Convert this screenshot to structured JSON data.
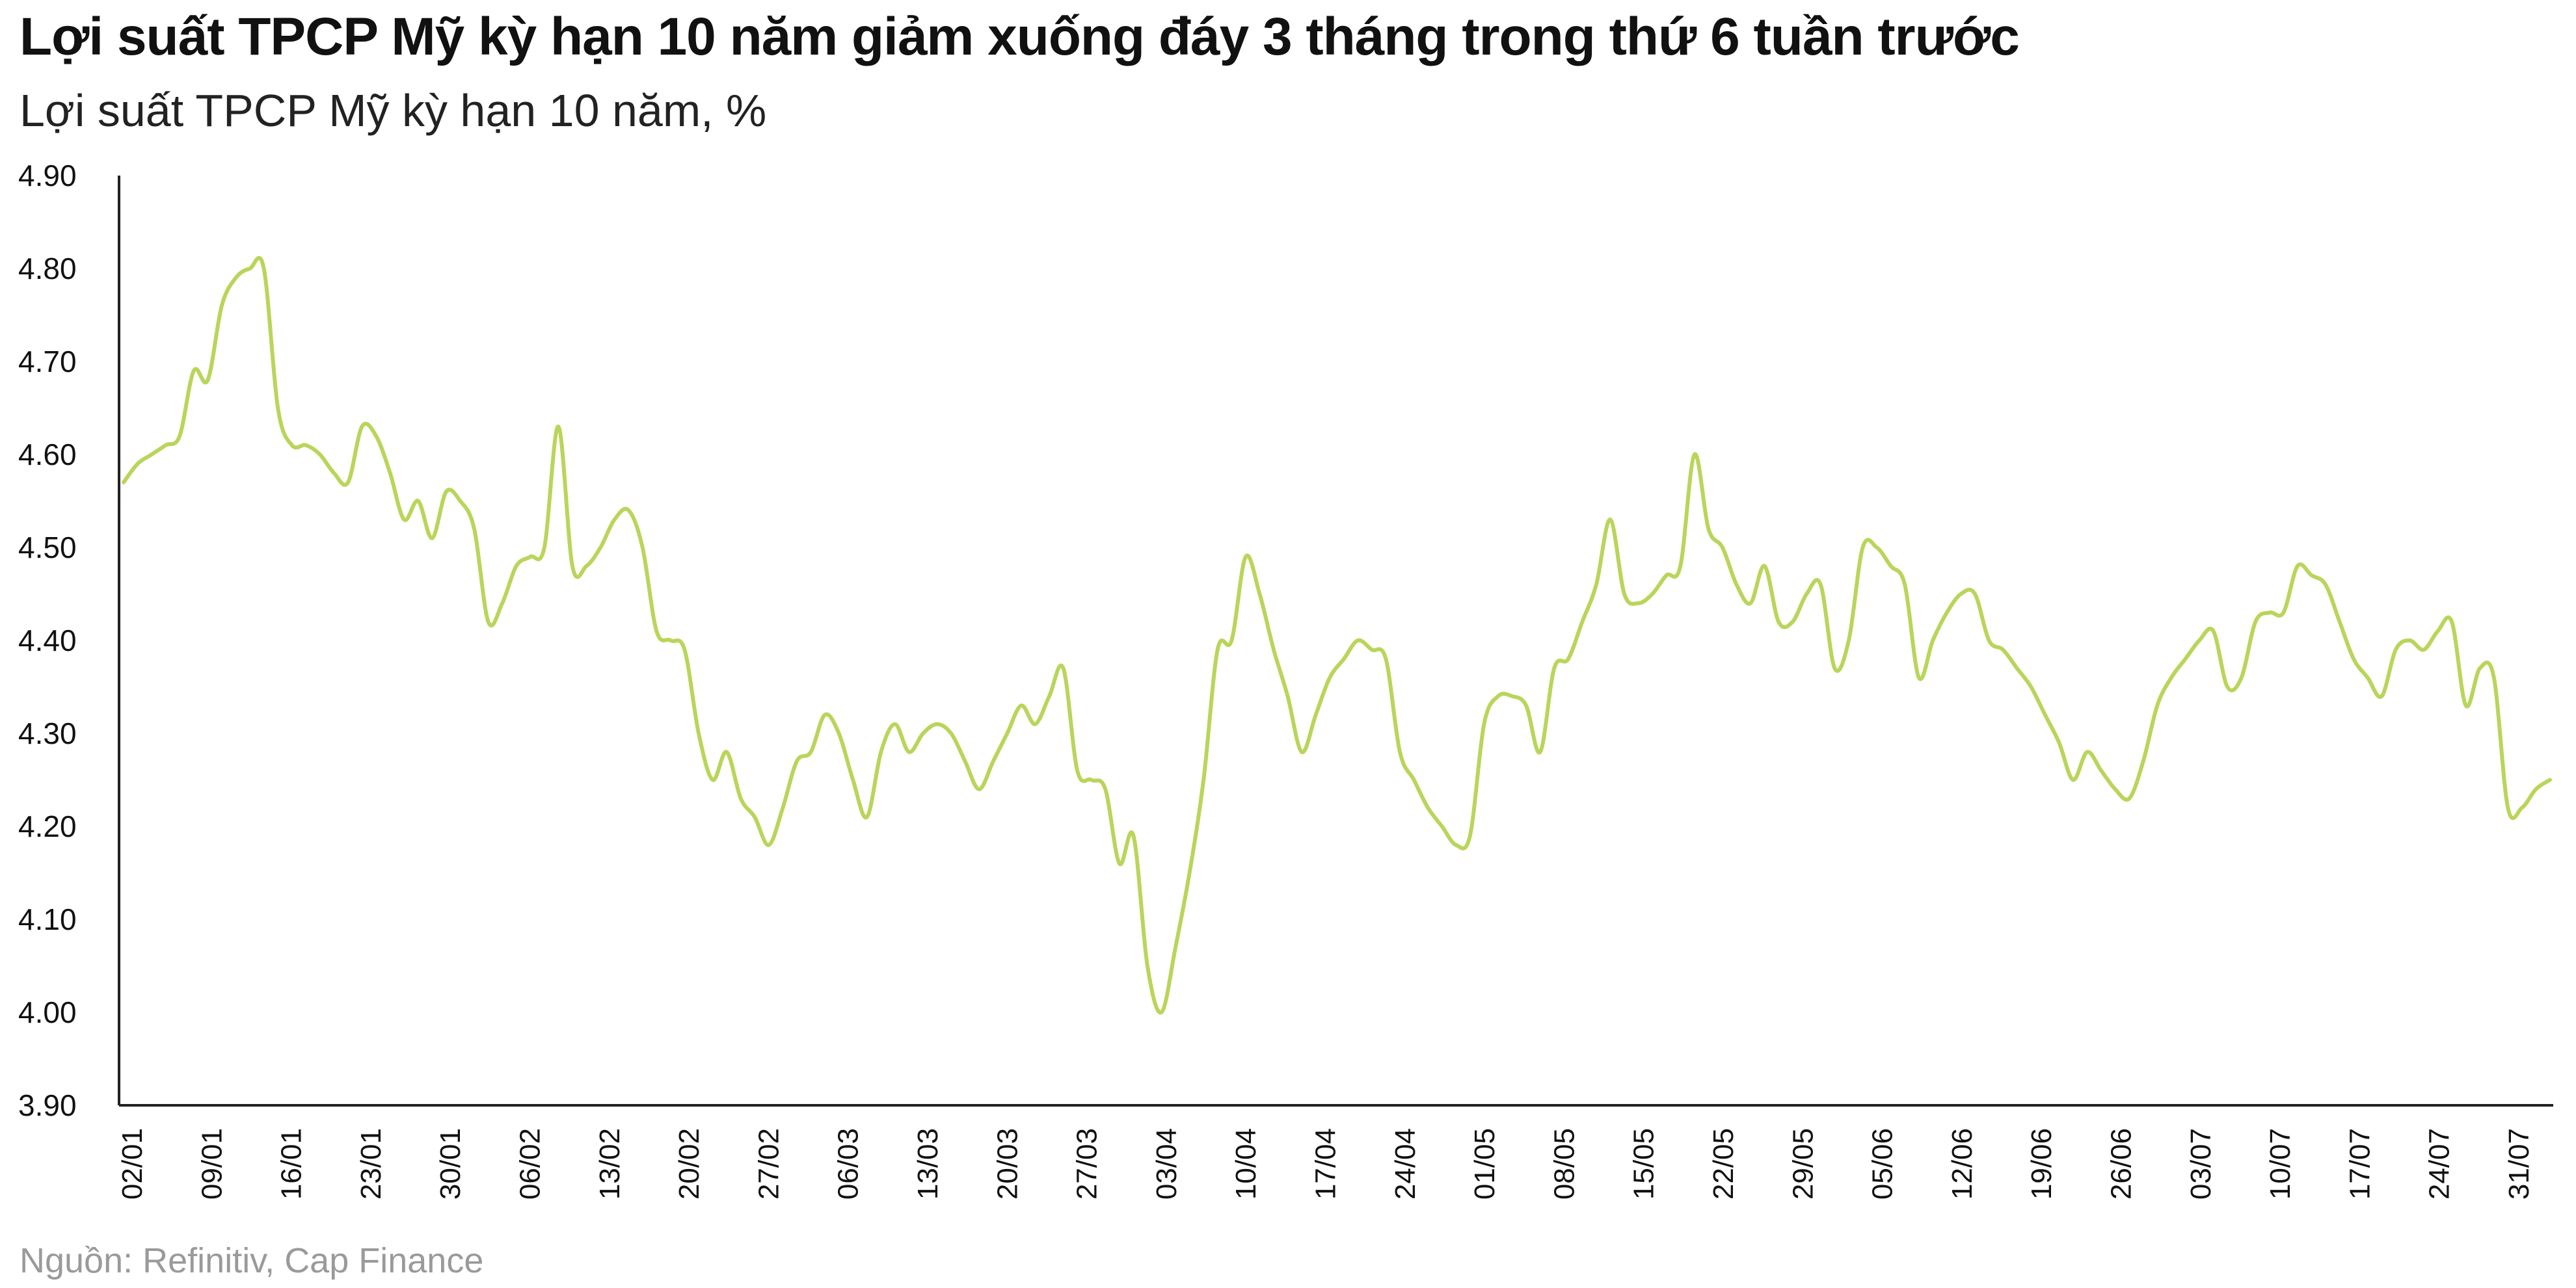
{
  "header": {
    "title": "Lợi suất TPCP Mỹ kỳ hạn 10 năm giảm xuống đáy 3 tháng trong thứ 6 tuần trước",
    "subtitle": "Lợi suất TPCP Mỹ kỳ hạn 10 năm, %"
  },
  "footer": {
    "source": "Nguồn: Refinitiv, Cap Finance"
  },
  "colors": {
    "line": "#b9d55a",
    "axis": "#222222"
  },
  "chart_data": {
    "type": "line",
    "title": "Lợi suất TPCP Mỹ kỳ hạn 10 năm giảm xuống đáy 3 tháng trong thứ 6 tuần trước",
    "ylabel": "Lợi suất TPCP Mỹ kỳ hạn 10 năm, %",
    "xlabel": "",
    "ylim": [
      3.9,
      4.9
    ],
    "y_ticks": [
      "4.90",
      "4.80",
      "4.70",
      "4.60",
      "4.50",
      "4.40",
      "4.30",
      "4.20",
      "4.10",
      "4.00",
      "3.90"
    ],
    "x_ticks": [
      "02/01",
      "09/01",
      "16/01",
      "23/01",
      "30/01",
      "06/02",
      "13/02",
      "20/02",
      "27/02",
      "06/03",
      "13/03",
      "20/03",
      "27/03",
      "03/04",
      "10/04",
      "17/04",
      "24/04",
      "01/05",
      "08/05",
      "15/05",
      "22/05",
      "29/05",
      "05/06",
      "12/06",
      "19/06",
      "26/06",
      "03/07",
      "10/07",
      "17/07",
      "24/07",
      "31/07"
    ],
    "grid": false,
    "legend": "none",
    "series": [
      {
        "values": [
          4.57,
          4.59,
          4.6,
          4.61,
          4.62,
          4.69,
          4.68,
          4.76,
          4.79,
          4.8,
          4.8,
          4.65,
          4.61,
          4.61,
          4.6,
          4.58,
          4.57,
          4.63,
          4.62,
          4.58,
          4.53,
          4.55,
          4.51,
          4.56,
          4.55,
          4.52,
          4.42,
          4.44,
          4.48,
          4.49,
          4.5,
          4.63,
          4.48,
          4.48,
          4.5,
          4.53,
          4.54,
          4.5,
          4.41,
          4.4,
          4.39,
          4.3,
          4.25,
          4.28,
          4.23,
          4.21,
          4.18,
          4.22,
          4.27,
          4.28,
          4.32,
          4.3,
          4.25,
          4.21,
          4.28,
          4.31,
          4.28,
          4.3,
          4.31,
          4.3,
          4.27,
          4.24,
          4.27,
          4.3,
          4.33,
          4.31,
          4.34,
          4.37,
          4.26,
          4.25,
          4.24,
          4.16,
          4.19,
          4.05,
          4.0,
          4.07,
          4.15,
          4.25,
          4.39,
          4.4,
          4.49,
          4.45,
          4.39,
          4.34,
          4.28,
          4.32,
          4.36,
          4.38,
          4.4,
          4.39,
          4.38,
          4.28,
          4.25,
          4.22,
          4.2,
          4.18,
          4.19,
          4.31,
          4.34,
          4.34,
          4.33,
          4.28,
          4.37,
          4.38,
          4.42,
          4.46,
          4.53,
          4.45,
          4.44,
          4.45,
          4.47,
          4.48,
          4.6,
          4.52,
          4.5,
          4.46,
          4.44,
          4.48,
          4.42,
          4.42,
          4.45,
          4.46,
          4.37,
          4.4,
          4.5,
          4.5,
          4.48,
          4.46,
          4.36,
          4.4,
          4.43,
          4.45,
          4.45,
          4.4,
          4.39,
          4.37,
          4.35,
          4.32,
          4.29,
          4.25,
          4.28,
          4.26,
          4.24,
          4.23,
          4.27,
          4.33,
          4.36,
          4.38,
          4.4,
          4.41,
          4.35,
          4.36,
          4.42,
          4.43,
          4.43,
          4.48,
          4.47,
          4.46,
          4.42,
          4.38,
          4.36,
          4.34,
          4.39,
          4.4,
          4.39,
          4.41,
          4.42,
          4.33,
          4.37,
          4.36,
          4.22,
          4.22,
          4.24,
          4.25
        ]
      }
    ]
  }
}
